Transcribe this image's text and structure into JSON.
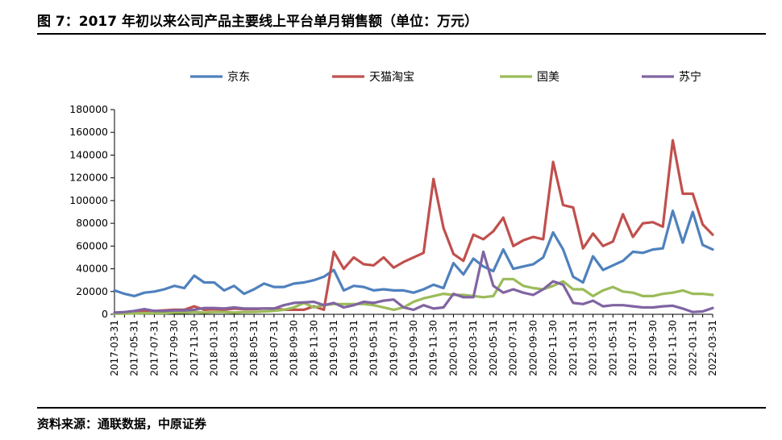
{
  "title": "图 7：2017 年初以来公司产品主要线上平台单月销售额（单位：万元）",
  "source": "资料来源：通联数据，中原证券",
  "colors": {
    "jd": "#4F81BD",
    "tmall": "#C0504D",
    "gome": "#9BBB59",
    "suning": "#8064A2"
  },
  "chart_data": {
    "type": "line",
    "title": "",
    "xlabel": "",
    "ylabel": "",
    "ylim": [
      0,
      180000
    ],
    "yticks": [
      "0",
      "20000",
      "40000",
      "60000",
      "80000",
      "100000",
      "120000",
      "140000",
      "160000",
      "180000"
    ],
    "grid": false,
    "legend": "top",
    "xtick_labels": [
      "2017-03-31",
      "2017-05-31",
      "2017-07-31",
      "2017-09-30",
      "2017-11-30",
      "2018-01-31",
      "2018-03-31",
      "2018-05-31",
      "2018-07-31",
      "2018-09-30",
      "2018-11-30",
      "2019-01-31",
      "2019-03-31",
      "2019-05-31",
      "2019-07-31",
      "2019-09-30",
      "2019-11-30",
      "2020-01-31",
      "2020-03-31",
      "2020-05-31",
      "2020-07-31",
      "2020-09-30",
      "2020-11-30",
      "2021-01-31",
      "2021-03-31",
      "2021-05-31",
      "2021-07-31",
      "2021-09-30",
      "2021-11-30",
      "2022-01-31",
      "2022-03-31"
    ],
    "series": [
      {
        "name": "京东",
        "color_key": "jd",
        "values": [
          21000,
          18000,
          16000,
          19000,
          20000,
          22000,
          25000,
          23000,
          34000,
          28000,
          28000,
          21000,
          25000,
          18000,
          22000,
          27000,
          24000,
          24000,
          27000,
          28000,
          30000,
          33000,
          39000,
          21000,
          25000,
          24000,
          21000,
          22000,
          21000,
          21000,
          19000,
          22000,
          26000,
          23000,
          45000,
          35000,
          49000,
          42000,
          38000,
          57000,
          40000,
          42000,
          44000,
          50000,
          72000,
          57000,
          33000,
          28000,
          51000,
          39000,
          43000,
          47000,
          55000,
          54000,
          57000,
          58000,
          91000,
          63000,
          90000,
          61000,
          57000
        ]
      },
      {
        "name": "天猫淘宝",
        "color_key": "tmall",
        "values": [
          1000,
          1500,
          2000,
          3000,
          3000,
          3500,
          4000,
          4000,
          7000,
          4000,
          4500,
          4000,
          5000,
          4500,
          4500,
          5000,
          5000,
          4000,
          4000,
          4000,
          7000,
          4000,
          55000,
          40000,
          50000,
          44000,
          43000,
          50000,
          41000,
          46000,
          50000,
          54000,
          119000,
          76000,
          53000,
          47000,
          70000,
          66000,
          73000,
          85000,
          60000,
          65000,
          68000,
          66000,
          134000,
          96000,
          94000,
          58000,
          71000,
          60000,
          64000,
          88000,
          68000,
          80000,
          81000,
          77000,
          153000,
          106000,
          106000,
          79000,
          70000
        ]
      },
      {
        "name": "国美",
        "color_key": "gome",
        "values": [
          500,
          500,
          800,
          1000,
          1000,
          1000,
          1500,
          1500,
          2000,
          1500,
          2000,
          2000,
          1500,
          2000,
          2000,
          2500,
          3000,
          4000,
          6000,
          10000,
          6000,
          8000,
          9000,
          9000,
          9000,
          9000,
          8000,
          6000,
          4000,
          6000,
          11000,
          14000,
          16000,
          18000,
          17000,
          17000,
          16000,
          15000,
          16000,
          31000,
          31000,
          25000,
          23000,
          22000,
          25000,
          29000,
          22000,
          22000,
          16000,
          21000,
          24000,
          20000,
          19000,
          16000,
          16000,
          18000,
          19000,
          21000,
          18000,
          18000,
          17000
        ]
      },
      {
        "name": "苏宁",
        "color_key": "suning",
        "values": [
          1500,
          2000,
          3000,
          4500,
          3000,
          3000,
          3500,
          3500,
          4000,
          5500,
          5500,
          5000,
          6000,
          5000,
          5000,
          5000,
          5000,
          8000,
          10000,
          10500,
          11000,
          8000,
          10000,
          6000,
          8000,
          11000,
          10000,
          12000,
          13000,
          6000,
          4000,
          8000,
          5000,
          6000,
          18000,
          15000,
          15000,
          55000,
          25000,
          19000,
          22000,
          19000,
          17000,
          22000,
          29000,
          26000,
          10000,
          9000,
          12000,
          7000,
          8000,
          8000,
          7000,
          6000,
          6000,
          7000,
          7500,
          5000,
          2000,
          2500,
          5500
        ]
      }
    ]
  }
}
